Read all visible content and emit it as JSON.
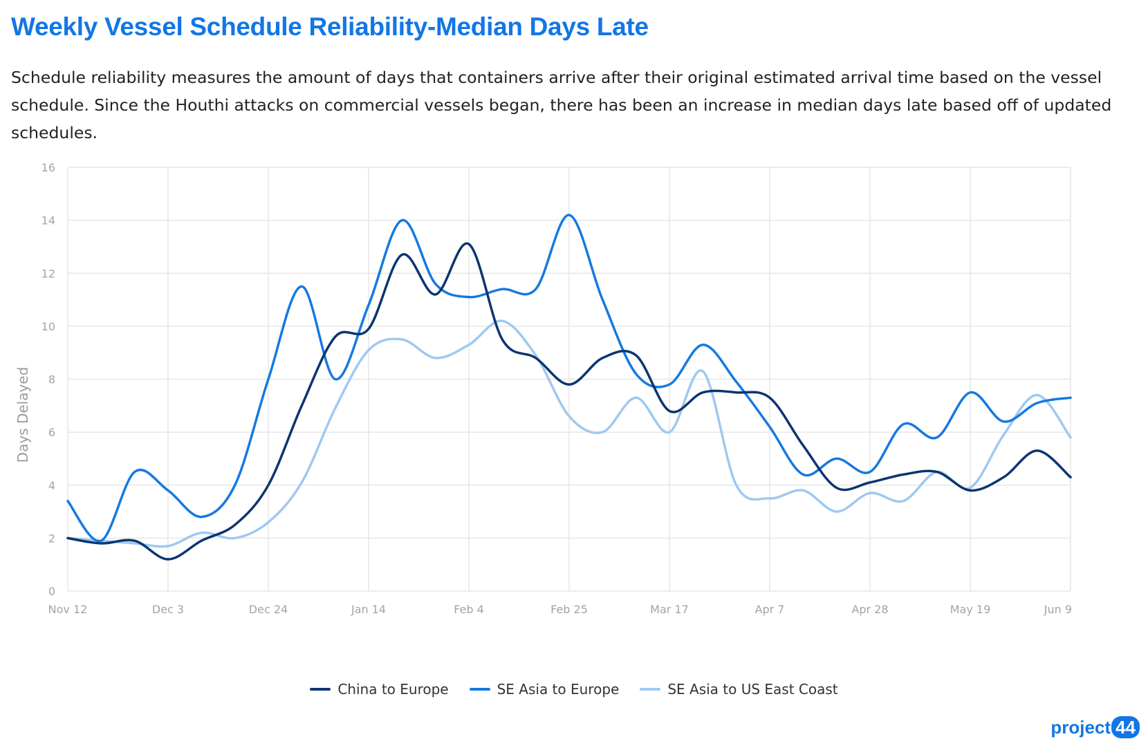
{
  "title": "Weekly Vessel Schedule Reliability-Median Days Late",
  "subtitle": "Schedule reliability measures the amount of days that containers arrive after their original estimated arrival time based on the vessel schedule. Since the Houthi attacks on commercial vessels began, there has been an increase in median days late based off of updated schedules.",
  "logo": {
    "text": "project",
    "number": "44"
  },
  "colors": {
    "china_to_europe": "#0b3570",
    "se_asia_to_europe": "#1479e1",
    "se_asia_to_us_east_coast": "#9ec9f1",
    "grid": "#e6e6e6"
  },
  "chart_data": {
    "type": "line",
    "ylabel": "Days Delayed",
    "xlabel": "",
    "ylim": [
      0,
      16
    ],
    "yticks": [
      "0",
      "2",
      "4",
      "6",
      "8",
      "10",
      "12",
      "14",
      "16"
    ],
    "grid": true,
    "legend_position": "bottom-center",
    "x": [
      "Nov 12",
      "Nov 19",
      "Nov 26",
      "Dec 3",
      "Dec 10",
      "Dec 17",
      "Dec 24",
      "Dec 31",
      "Jan 7",
      "Jan 14",
      "Jan 21",
      "Jan 28",
      "Feb 4",
      "Feb 11",
      "Feb 18",
      "Feb 25",
      "Mar 3",
      "Mar 10",
      "Mar 17",
      "Mar 24",
      "Mar 31",
      "Apr 7",
      "Apr 14",
      "Apr 21",
      "Apr 28",
      "May 5",
      "May 12",
      "May 19",
      "May 26",
      "Jun 2",
      "Jun 9"
    ],
    "xtick_labels": [
      "Nov 12",
      "Dec 3",
      "Dec 24",
      "Jan 14",
      "Feb 4",
      "Feb 25",
      "Mar 17",
      "Apr 7",
      "Apr 28",
      "May 19",
      "Jun 9"
    ],
    "series": [
      {
        "name": "China to Europe",
        "values": [
          2.0,
          1.8,
          1.9,
          1.2,
          1.9,
          2.5,
          4.0,
          7.0,
          9.6,
          9.9,
          12.7,
          11.2,
          13.1,
          9.5,
          8.8,
          7.8,
          8.8,
          8.9,
          6.8,
          7.5,
          7.5,
          7.3,
          5.5,
          3.9,
          4.1,
          4.4,
          4.5,
          3.8,
          4.3,
          5.3,
          4.3
        ]
      },
      {
        "name": "SE Asia to Europe",
        "values": [
          3.4,
          1.9,
          4.5,
          3.8,
          2.8,
          4.0,
          8.0,
          11.5,
          8.0,
          10.8,
          14.0,
          11.6,
          11.1,
          11.4,
          11.4,
          14.2,
          11.0,
          8.2,
          7.8,
          9.3,
          7.9,
          6.2,
          4.4,
          5.0,
          4.5,
          6.3,
          5.8,
          7.5,
          6.4,
          7.1,
          7.3
        ]
      },
      {
        "name": "SE Asia to US East Coast",
        "values": [
          2.0,
          1.9,
          1.8,
          1.7,
          2.2,
          2.0,
          2.6,
          4.1,
          6.9,
          9.1,
          9.5,
          8.8,
          9.3,
          10.2,
          8.9,
          6.6,
          6.0,
          7.3,
          6.0,
          8.3,
          4.0,
          3.5,
          3.8,
          3.0,
          3.7,
          3.4,
          4.5,
          3.9,
          5.9,
          7.4,
          5.8
        ]
      }
    ]
  }
}
